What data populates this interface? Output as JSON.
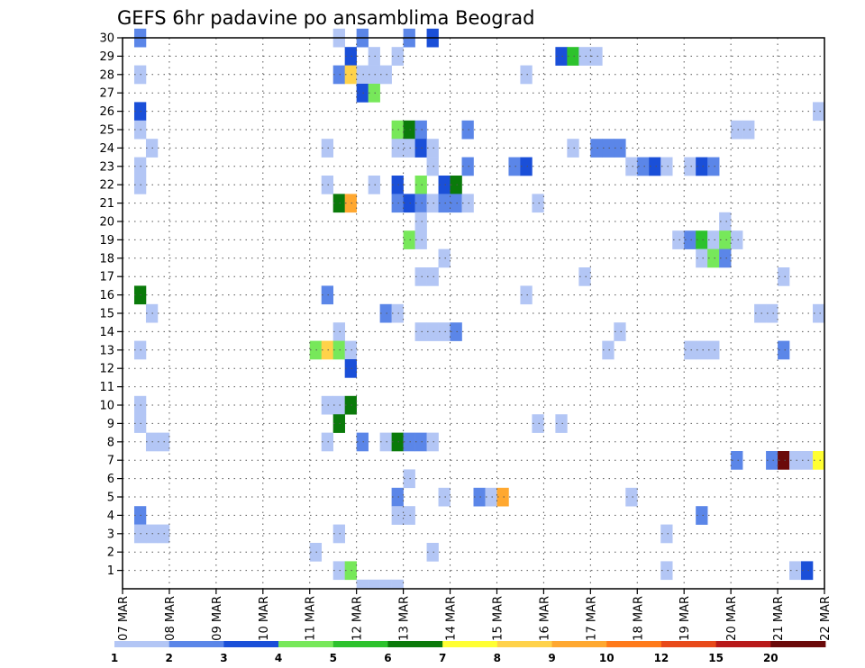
{
  "chart_data": {
    "type": "heatmap",
    "title": "GEFS 6hr padavine po ansamblima Beograd",
    "x_tick_labels": [
      "07 MAR",
      "08 MAR",
      "09 MAR",
      "10 MAR",
      "11 MAR",
      "12 MAR",
      "13 MAR",
      "14 MAR",
      "15 MAR",
      "16 MAR",
      "17 MAR",
      "18 MAR",
      "19 MAR",
      "20 MAR",
      "21 MAR",
      "22 MAR"
    ],
    "y_tick_labels": [
      "1",
      "2",
      "3",
      "4",
      "5",
      "6",
      "7",
      "8",
      "9",
      "10",
      "11",
      "12",
      "13",
      "14",
      "15",
      "16",
      "17",
      "18",
      "19",
      "20",
      "21",
      "22",
      "23",
      "24",
      "25",
      "26",
      "27",
      "28",
      "29",
      "30"
    ],
    "y_range": [
      0,
      30
    ],
    "x_steps_per_day": 4,
    "x_range_steps": [
      0,
      60
    ],
    "grid": true,
    "legend": {
      "placement": "bottom",
      "labels": [
        "1",
        "2",
        "3",
        "4",
        "5",
        "6",
        "7",
        "8",
        "9",
        "10",
        "12",
        "15",
        "20"
      ],
      "colors": [
        "#b3c6f5",
        "#5b86e8",
        "#1a4fd8",
        "#77e85a",
        "#2dc22d",
        "#0a7a0a",
        "#ffff33",
        "#ffd24a",
        "#ffa830",
        "#ff7a1a",
        "#e84a1a",
        "#b81a1a",
        "#6b0a0a"
      ]
    },
    "cells": [
      [
        1,
        30,
        2
      ],
      [
        18,
        30,
        1
      ],
      [
        20,
        30,
        2
      ],
      [
        24,
        30,
        2
      ],
      [
        26,
        30,
        3
      ],
      [
        19,
        29,
        3
      ],
      [
        21,
        29,
        1
      ],
      [
        23,
        29,
        1
      ],
      [
        37,
        29,
        3
      ],
      [
        38,
        29,
        5
      ],
      [
        39,
        29,
        1
      ],
      [
        40,
        29,
        1
      ],
      [
        1,
        28,
        1
      ],
      [
        18,
        28,
        2
      ],
      [
        19,
        28,
        8
      ],
      [
        20,
        28,
        1
      ],
      [
        21,
        28,
        1
      ],
      [
        22,
        28,
        1
      ],
      [
        34,
        28,
        1
      ],
      [
        20,
        27,
        3
      ],
      [
        21,
        27,
        4
      ],
      [
        1,
        26,
        3
      ],
      [
        59,
        26,
        1
      ],
      [
        1,
        25,
        1
      ],
      [
        23,
        25,
        4
      ],
      [
        24,
        25,
        6
      ],
      [
        25,
        25,
        2
      ],
      [
        29,
        25,
        2
      ],
      [
        52,
        25,
        1
      ],
      [
        53,
        25,
        1
      ],
      [
        2,
        24,
        1
      ],
      [
        17,
        24,
        1
      ],
      [
        23,
        24,
        1
      ],
      [
        24,
        24,
        1
      ],
      [
        25,
        24,
        3
      ],
      [
        26,
        24,
        1
      ],
      [
        38,
        24,
        1
      ],
      [
        40,
        24,
        2
      ],
      [
        41,
        24,
        2
      ],
      [
        42,
        24,
        2
      ],
      [
        1,
        23,
        1
      ],
      [
        26,
        23,
        1
      ],
      [
        29,
        23,
        2
      ],
      [
        33,
        23,
        2
      ],
      [
        34,
        23,
        3
      ],
      [
        43,
        23,
        1
      ],
      [
        44,
        23,
        2
      ],
      [
        45,
        23,
        3
      ],
      [
        46,
        23,
        1
      ],
      [
        48,
        23,
        1
      ],
      [
        49,
        23,
        3
      ],
      [
        50,
        23,
        2
      ],
      [
        1,
        22,
        1
      ],
      [
        17,
        22,
        1
      ],
      [
        21,
        22,
        1
      ],
      [
        23,
        22,
        3
      ],
      [
        25,
        22,
        4
      ],
      [
        27,
        22,
        3
      ],
      [
        28,
        22,
        6
      ],
      [
        18,
        21,
        6
      ],
      [
        19,
        21,
        9
      ],
      [
        23,
        21,
        2
      ],
      [
        24,
        21,
        3
      ],
      [
        25,
        21,
        2
      ],
      [
        26,
        21,
        1
      ],
      [
        27,
        21,
        2
      ],
      [
        28,
        21,
        2
      ],
      [
        29,
        21,
        1
      ],
      [
        35,
        21,
        1
      ],
      [
        25,
        20,
        1
      ],
      [
        51,
        20,
        1
      ],
      [
        24,
        19,
        4
      ],
      [
        25,
        19,
        1
      ],
      [
        47,
        19,
        1
      ],
      [
        48,
        19,
        2
      ],
      [
        49,
        19,
        5
      ],
      [
        50,
        19,
        1
      ],
      [
        51,
        19,
        4
      ],
      [
        52,
        19,
        1
      ],
      [
        27,
        18,
        1
      ],
      [
        49,
        18,
        1
      ],
      [
        50,
        18,
        4
      ],
      [
        51,
        18,
        2
      ],
      [
        25,
        17,
        1
      ],
      [
        26,
        17,
        1
      ],
      [
        39,
        17,
        1
      ],
      [
        56,
        17,
        1
      ],
      [
        1,
        16,
        6
      ],
      [
        17,
        16,
        2
      ],
      [
        34,
        16,
        1
      ],
      [
        2,
        15,
        1
      ],
      [
        22,
        15,
        2
      ],
      [
        23,
        15,
        1
      ],
      [
        54,
        15,
        1
      ],
      [
        55,
        15,
        1
      ],
      [
        59,
        15,
        1
      ],
      [
        18,
        14,
        1
      ],
      [
        25,
        14,
        1
      ],
      [
        26,
        14,
        1
      ],
      [
        27,
        14,
        1
      ],
      [
        28,
        14,
        2
      ],
      [
        42,
        14,
        1
      ],
      [
        1,
        13,
        1
      ],
      [
        16,
        13,
        4
      ],
      [
        17,
        13,
        8
      ],
      [
        18,
        13,
        4
      ],
      [
        19,
        13,
        1
      ],
      [
        41,
        13,
        1
      ],
      [
        48,
        13,
        1
      ],
      [
        49,
        13,
        1
      ],
      [
        50,
        13,
        1
      ],
      [
        56,
        13,
        2
      ],
      [
        19,
        12,
        3
      ],
      [
        1,
        10,
        1
      ],
      [
        17,
        10,
        1
      ],
      [
        18,
        10,
        1
      ],
      [
        19,
        10,
        6
      ],
      [
        1,
        9,
        1
      ],
      [
        18,
        9,
        6
      ],
      [
        35,
        9,
        1
      ],
      [
        37,
        9,
        1
      ],
      [
        2,
        8,
        1
      ],
      [
        3,
        8,
        1
      ],
      [
        17,
        8,
        1
      ],
      [
        20,
        8,
        2
      ],
      [
        22,
        8,
        1
      ],
      [
        23,
        8,
        6
      ],
      [
        24,
        8,
        2
      ],
      [
        25,
        8,
        2
      ],
      [
        26,
        8,
        1
      ],
      [
        52,
        7,
        2
      ],
      [
        55,
        7,
        2
      ],
      [
        56,
        7,
        13
      ],
      [
        57,
        7,
        1
      ],
      [
        58,
        7,
        1
      ],
      [
        59,
        7,
        7
      ],
      [
        24,
        6,
        1
      ],
      [
        23,
        5,
        2
      ],
      [
        27,
        5,
        1
      ],
      [
        30,
        5,
        2
      ],
      [
        31,
        5,
        1
      ],
      [
        32,
        5,
        9
      ],
      [
        43,
        5,
        1
      ],
      [
        1,
        4,
        2
      ],
      [
        23,
        4,
        1
      ],
      [
        24,
        4,
        1
      ],
      [
        49,
        4,
        2
      ],
      [
        1,
        3,
        1
      ],
      [
        2,
        3,
        1
      ],
      [
        3,
        3,
        1
      ],
      [
        18,
        3,
        1
      ],
      [
        46,
        3,
        1
      ],
      [
        16,
        2,
        1
      ],
      [
        26,
        2,
        1
      ],
      [
        18,
        1,
        1
      ],
      [
        19,
        1,
        4
      ],
      [
        46,
        1,
        1
      ],
      [
        57,
        1,
        1
      ],
      [
        58,
        1,
        3
      ],
      [
        20,
        0,
        1
      ],
      [
        21,
        0,
        1
      ],
      [
        22,
        0,
        1
      ],
      [
        23,
        0,
        1
      ]
    ]
  }
}
